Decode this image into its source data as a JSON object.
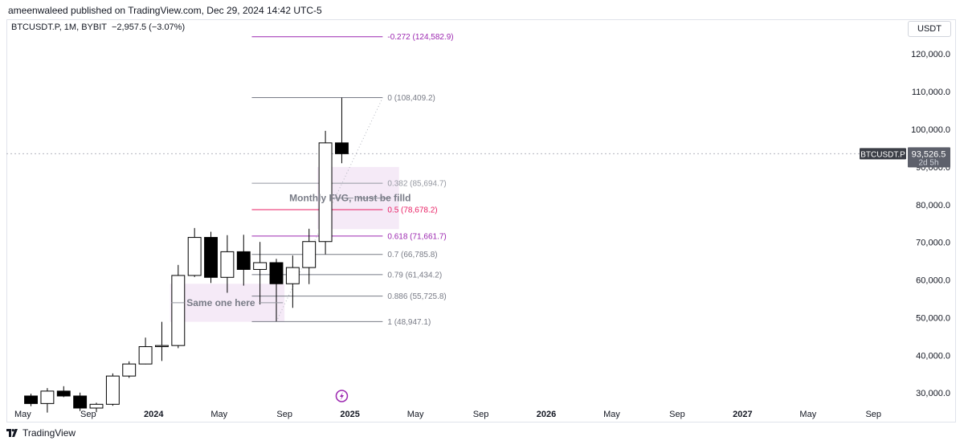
{
  "header": {
    "publisher_line": "ameenwaleed published on TradingView.com, Dec 29, 2024 14:42 UTC-5"
  },
  "symbol_bar": {
    "symbol": "BTCUSDT.P, 1M, BYBIT",
    "change": "−2,957.5 (−3.07%)"
  },
  "currency_button": "USDT",
  "footer": {
    "brand": "TradingView"
  },
  "colors": {
    "fib_main": "#9c27b0",
    "fib_gray": "#787b86",
    "fib_red": "#f23645",
    "zone_fill": "#f3e5f5",
    "candle_dark": "#000000"
  },
  "chart_data": {
    "type": "candlestick",
    "interval": "1M",
    "ylim": [
      26000,
      129000
    ],
    "y_ticks": [
      {
        "value": 30000,
        "label": "30,000.0"
      },
      {
        "value": 40000,
        "label": "40,000.0"
      },
      {
        "value": 50000,
        "label": "50,000.0"
      },
      {
        "value": 60000,
        "label": "60,000.0"
      },
      {
        "value": 70000,
        "label": "70,000.0"
      },
      {
        "value": 80000,
        "label": "80,000.0"
      },
      {
        "value": 90000,
        "label": "90,000.0"
      },
      {
        "value": 100000,
        "label": "100,000.0"
      },
      {
        "value": 110000,
        "label": "110,000.0"
      },
      {
        "value": 120000,
        "label": "120,000.0"
      }
    ],
    "x_range": [
      "2023-04",
      "2027-11"
    ],
    "x_ticks": [
      {
        "date": "2023-05",
        "label": "May",
        "bold": false
      },
      {
        "date": "2023-09",
        "label": "Sep",
        "bold": false
      },
      {
        "date": "2024-01",
        "label": "2024",
        "bold": true
      },
      {
        "date": "2024-05",
        "label": "May",
        "bold": false
      },
      {
        "date": "2024-09",
        "label": "Sep",
        "bold": false
      },
      {
        "date": "2025-01",
        "label": "2025",
        "bold": true
      },
      {
        "date": "2025-05",
        "label": "May",
        "bold": false
      },
      {
        "date": "2025-09",
        "label": "Sep",
        "bold": false
      },
      {
        "date": "2026-01",
        "label": "2026",
        "bold": true
      },
      {
        "date": "2026-05",
        "label": "May",
        "bold": false
      },
      {
        "date": "2026-09",
        "label": "Sep",
        "bold": false
      },
      {
        "date": "2027-01",
        "label": "2027",
        "bold": true
      },
      {
        "date": "2027-05",
        "label": "May",
        "bold": false
      },
      {
        "date": "2027-09",
        "label": "Sep",
        "bold": false
      }
    ],
    "candles": [
      {
        "date": "2023-05",
        "o": 29200,
        "h": 29800,
        "l": 26500,
        "c": 27200
      },
      {
        "date": "2023-06",
        "o": 27200,
        "h": 31300,
        "l": 24800,
        "c": 30500
      },
      {
        "date": "2023-07",
        "o": 30500,
        "h": 31800,
        "l": 28900,
        "c": 29200
      },
      {
        "date": "2023-08",
        "o": 29200,
        "h": 30100,
        "l": 25200,
        "c": 26000
      },
      {
        "date": "2023-09",
        "o": 26000,
        "h": 27400,
        "l": 24900,
        "c": 27000
      },
      {
        "date": "2023-10",
        "o": 27000,
        "h": 35200,
        "l": 26600,
        "c": 34500
      },
      {
        "date": "2023-11",
        "o": 34500,
        "h": 38400,
        "l": 34000,
        "c": 37700
      },
      {
        "date": "2023-12",
        "o": 37700,
        "h": 44700,
        "l": 37600,
        "c": 42300
      },
      {
        "date": "2024-01",
        "o": 42300,
        "h": 48900,
        "l": 38500,
        "c": 42600
      },
      {
        "date": "2024-02",
        "o": 42600,
        "h": 64000,
        "l": 41900,
        "c": 61200
      },
      {
        "date": "2024-03",
        "o": 61200,
        "h": 73800,
        "l": 60800,
        "c": 71300
      },
      {
        "date": "2024-04",
        "o": 71300,
        "h": 72800,
        "l": 59200,
        "c": 60700
      },
      {
        "date": "2024-05",
        "o": 60700,
        "h": 71900,
        "l": 56600,
        "c": 67500
      },
      {
        "date": "2024-06",
        "o": 67500,
        "h": 72000,
        "l": 58500,
        "c": 62800
      },
      {
        "date": "2024-07",
        "o": 62800,
        "h": 70100,
        "l": 53500,
        "c": 64600
      },
      {
        "date": "2024-08",
        "o": 64600,
        "h": 65600,
        "l": 49000,
        "c": 59000
      },
      {
        "date": "2024-09",
        "o": 59000,
        "h": 66500,
        "l": 52600,
        "c": 63300
      },
      {
        "date": "2024-10",
        "o": 63300,
        "h": 73600,
        "l": 58900,
        "c": 70200
      },
      {
        "date": "2024-11",
        "o": 70200,
        "h": 99600,
        "l": 66800,
        "c": 96400
      },
      {
        "date": "2024-12",
        "o": 96400,
        "h": 108409,
        "l": 91000,
        "c": 93526
      }
    ],
    "fib_levels": [
      {
        "label": "-0.272 (124,582.9)",
        "value": 124582.9,
        "color": "#9c27b0"
      },
      {
        "label": "0 (108,409.2)",
        "value": 108409.2,
        "color": "#787b86"
      },
      {
        "label": "0.382 (85,694.7)",
        "value": 85694.7,
        "color": "#9598a1"
      },
      {
        "label": "0.5 (78,678.2)",
        "value": 78678.2,
        "color": "#e91e63"
      },
      {
        "label": "0.618 (71,661.7)",
        "value": 71661.7,
        "color": "#9c27b0"
      },
      {
        "label": "0.7 (66,785.8)",
        "value": 66785.8,
        "color": "#787b86"
      },
      {
        "label": "0.79 (61,434.2)",
        "value": 61434.2,
        "color": "#787b86"
      },
      {
        "label": "0.886 (55,725.8)",
        "value": 55725.8,
        "color": "#787b86"
      },
      {
        "label": "1 (48,947.1)",
        "value": 48947.1,
        "color": "#787b86"
      }
    ],
    "fib_x_range": [
      "2024-07",
      "2025-03"
    ],
    "trend_line": {
      "from": {
        "date": "2024-08",
        "value": 48947.1
      },
      "to": {
        "date": "2025-03",
        "value": 108409.2
      }
    },
    "zones": [
      {
        "label": "Monthly FVG, must be filld",
        "x_from": "2024-11",
        "x_to": "2025-04",
        "y_from": 73500,
        "y_to": 90000
      },
      {
        "label": "Same one here",
        "x_from": "2024-02",
        "x_to": "2024-09",
        "y_from": 48900,
        "y_to": 59000
      }
    ],
    "last_price": {
      "symbol": "BTCUSDT.P",
      "value": 93526.5,
      "label": "93,526.5",
      "countdown": "2d 5h"
    }
  }
}
